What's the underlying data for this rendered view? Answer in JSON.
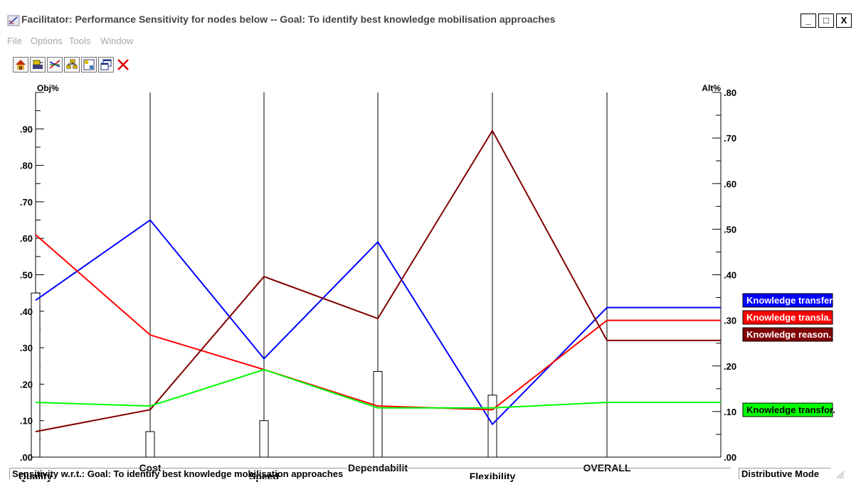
{
  "window": {
    "title": "Facilitator: Performance Sensitivity for nodes below -- Goal: To identify best knowledge mobilisation approaches",
    "minimize": "_",
    "maximize": "□",
    "close": "X"
  },
  "menu": [
    "File",
    "Options",
    "Tools",
    "Window"
  ],
  "toolbar": [
    "home-icon",
    "print-icon",
    "sensitivity-icon",
    "tree-icon",
    "layout-icon",
    "windows-icon",
    "close-icon"
  ],
  "status": {
    "left": "Sensitivity w.r.t.: Goal: To identify best knowledge mobilisation approaches",
    "right": "Distributive Mode"
  },
  "colors": {
    "blue": "#0000ff",
    "red": "#ff0000",
    "maroon": "#800000",
    "green": "#00ff00"
  },
  "chart_data": {
    "type": "line",
    "left_axis_label": "Obj%",
    "right_axis_label": "Alt%",
    "left_ticks": [
      ".00",
      ".10",
      ".20",
      ".30",
      ".40",
      ".50",
      ".60",
      ".70",
      ".80",
      ".90"
    ],
    "right_ticks": [
      ".00",
      ".10",
      ".20",
      ".30",
      ".40",
      ".50",
      ".60",
      ".70",
      ".80"
    ],
    "left_range": [
      0,
      1.0
    ],
    "right_range": [
      0,
      0.8
    ],
    "categories": [
      "Quality",
      "Cost",
      "Speed",
      "Dependabilit",
      "Flexibility",
      "OVERALL"
    ],
    "objective_weights": [
      0.45,
      0.07,
      0.1,
      0.235,
      0.17
    ],
    "series": [
      {
        "name": "Knowledge transfer",
        "color": "#0000ff",
        "values": [
          0.43,
          0.65,
          0.27,
          0.59,
          0.09,
          0.41
        ],
        "overall": 0.41
      },
      {
        "name": "Knowledge transla.",
        "color": "#ff0000",
        "values": [
          0.61,
          0.335,
          0.24,
          0.14,
          0.13,
          0.375
        ],
        "overall": 0.375
      },
      {
        "name": "Knowledge reason.",
        "color": "#800000",
        "values": [
          0.07,
          0.13,
          0.495,
          0.38,
          0.895,
          0.32
        ],
        "overall": 0.32
      },
      {
        "name": "Knowledge transfor.",
        "color": "#00ff00",
        "values": [
          0.15,
          0.14,
          0.24,
          0.135,
          0.135,
          0.15
        ],
        "overall": 0.15
      }
    ]
  }
}
